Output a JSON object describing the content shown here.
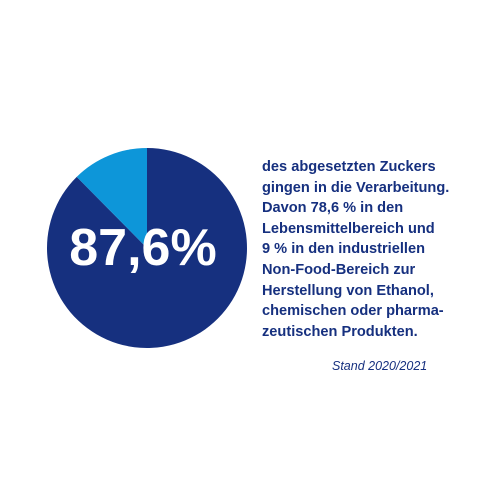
{
  "chart_data": {
    "type": "pie",
    "center_label": "87,6%",
    "slices": [
      {
        "label": "87,6%",
        "value": 87.6,
        "color": "#16307f"
      },
      {
        "label": "",
        "value": 12.4,
        "color": "#0d96d9"
      }
    ]
  },
  "description_lines": [
    "des abgesetzten Zuckers",
    "gingen in die Verarbeitung.",
    "Davon 78,6 % in den",
    "Lebensmittelbereich und",
    "9 % in den industriellen",
    "Non-Food-Bereich zur",
    "Herstellung von Ethanol,",
    "chemischen oder pharma-",
    "zeutischen Produkten."
  ],
  "source_note": "Stand 2020/2021"
}
